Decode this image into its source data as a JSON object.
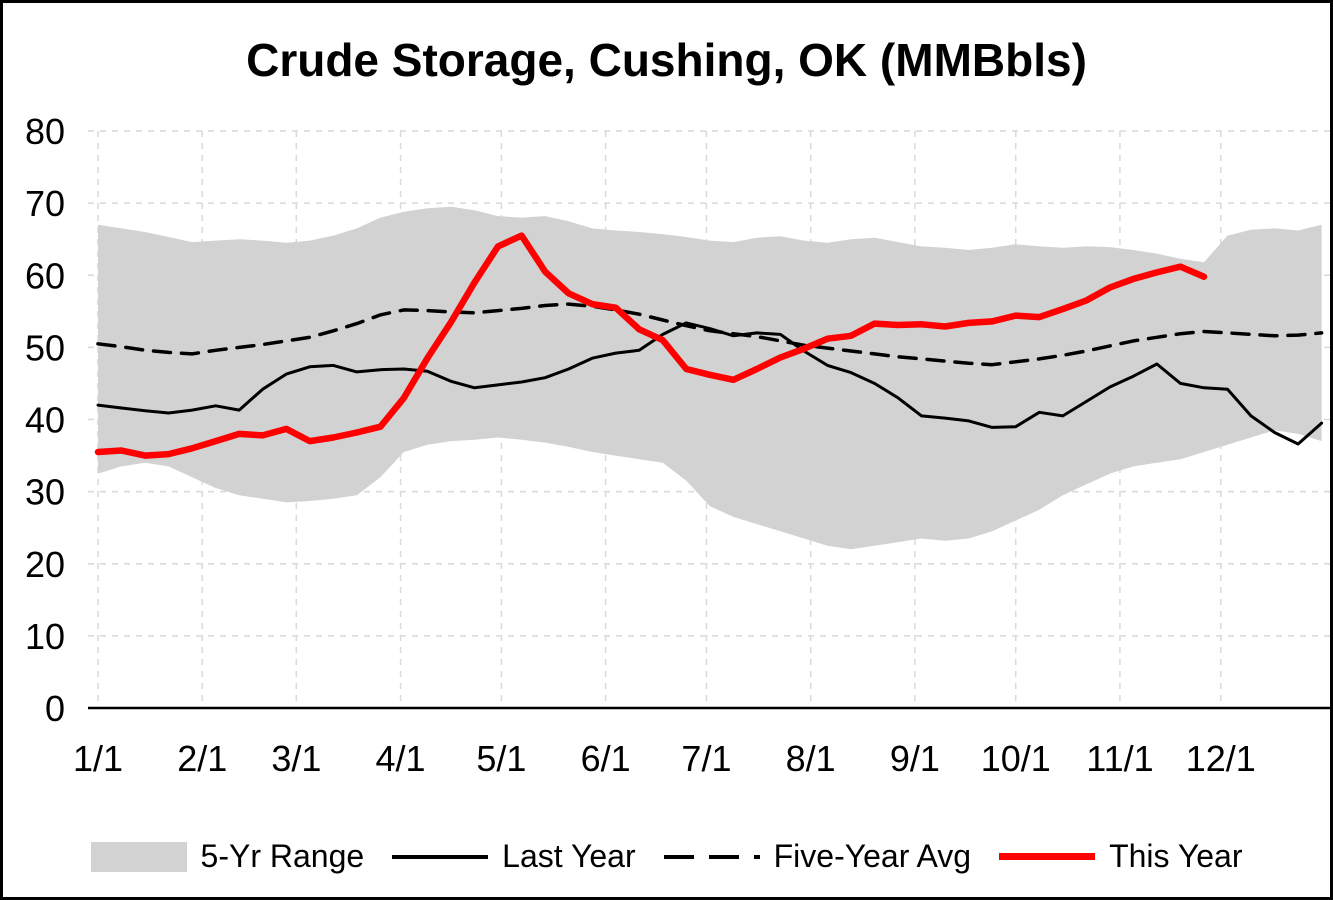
{
  "chart_data": {
    "type": "line",
    "title": "Crude Storage, Cushing, OK (MMBbls)",
    "xlabel": "",
    "ylabel": "",
    "ylim": [
      0,
      80
    ],
    "y_ticks": [
      0,
      10,
      20,
      30,
      40,
      50,
      60,
      70,
      80
    ],
    "x_domain_days": [
      0,
      364
    ],
    "x_tick_days": [
      0,
      31,
      59,
      90,
      120,
      151,
      181,
      212,
      243,
      273,
      304,
      334
    ],
    "x_tick_labels": [
      "1/1",
      "2/1",
      "3/1",
      "4/1",
      "5/1",
      "6/1",
      "7/1",
      "8/1",
      "9/1",
      "10/1",
      "11/1",
      "12/1"
    ],
    "step_days": 7,
    "grid": true,
    "legend_position": "bottom",
    "band": {
      "name": "5-Yr Range",
      "color": "#d2d2d2",
      "upper": [
        67.0,
        66.5,
        66.0,
        65.3,
        64.6,
        64.8,
        65.0,
        64.8,
        64.5,
        64.8,
        65.5,
        66.5,
        68.0,
        68.8,
        69.3,
        69.5,
        69.0,
        68.2,
        68.0,
        68.2,
        67.5,
        66.5,
        66.2,
        66.0,
        65.7,
        65.3,
        64.8,
        64.6,
        65.2,
        65.4,
        64.8,
        64.5,
        65.0,
        65.2,
        64.6,
        64.0,
        63.8,
        63.5,
        63.8,
        64.3,
        64.0,
        63.8,
        64.0,
        63.9,
        63.5,
        63.0,
        62.3,
        61.8,
        65.5,
        66.3,
        66.5,
        66.2,
        67.0
      ],
      "lower": [
        32.5,
        33.5,
        34.0,
        33.5,
        32.0,
        30.5,
        29.5,
        29.0,
        28.5,
        28.7,
        29.0,
        29.5,
        32.0,
        35.5,
        36.5,
        37.0,
        37.2,
        37.5,
        37.2,
        36.8,
        36.2,
        35.5,
        35.0,
        34.5,
        34.0,
        31.5,
        28.0,
        26.5,
        25.5,
        24.5,
        23.5,
        22.5,
        22.0,
        22.5,
        23.0,
        23.5,
        23.2,
        23.5,
        24.5,
        26.0,
        27.5,
        29.5,
        31.0,
        32.5,
        33.5,
        34.0,
        34.5,
        35.5,
        36.5,
        37.5,
        38.5,
        38.0,
        37.0
      ]
    },
    "series": [
      {
        "name": "Last Year",
        "color": "#000000",
        "style": "solid",
        "width": 3,
        "values": [
          42.0,
          41.6,
          41.2,
          40.9,
          41.3,
          41.9,
          41.3,
          44.2,
          46.3,
          47.3,
          47.5,
          46.6,
          46.9,
          47.0,
          46.7,
          45.3,
          44.4,
          44.8,
          45.2,
          45.8,
          47.0,
          48.5,
          49.2,
          49.6,
          51.8,
          53.4,
          52.6,
          51.6,
          52.0,
          51.8,
          49.5,
          47.5,
          46.5,
          45.0,
          43.0,
          40.5,
          40.2,
          39.8,
          38.9,
          39.0,
          41.0,
          40.5,
          42.5,
          44.5,
          46.0,
          47.7,
          45.0,
          44.4,
          44.2,
          40.5,
          38.2,
          36.6,
          39.5
        ]
      },
      {
        "name": "Five-Year Avg",
        "color": "#000000",
        "style": "dashed",
        "width": 3.5,
        "values": [
          50.5,
          50.1,
          49.6,
          49.3,
          49.1,
          49.6,
          50.0,
          50.4,
          50.9,
          51.4,
          52.3,
          53.3,
          54.5,
          55.2,
          55.1,
          54.9,
          54.8,
          55.1,
          55.4,
          55.8,
          56.0,
          55.7,
          55.2,
          54.6,
          53.8,
          53.0,
          52.3,
          51.9,
          51.5,
          50.9,
          50.3,
          49.9,
          49.5,
          49.1,
          48.7,
          48.4,
          48.1,
          47.8,
          47.6,
          48.0,
          48.4,
          48.9,
          49.5,
          50.2,
          50.9,
          51.4,
          51.9,
          52.2,
          52.0,
          51.8,
          51.6,
          51.7,
          52.0
        ]
      },
      {
        "name": "This Year",
        "color": "#fe0000",
        "style": "solid",
        "width": 6.5,
        "values": [
          35.5,
          35.7,
          35.0,
          35.2,
          36.0,
          37.0,
          38.0,
          37.8,
          38.7,
          37.0,
          37.5,
          38.2,
          39.0,
          43.0,
          48.5,
          53.5,
          59.0,
          64.0,
          65.5,
          60.5,
          57.5,
          56.0,
          55.5,
          52.5,
          51.0,
          47.0,
          46.2,
          45.5,
          47.0,
          48.6,
          49.8,
          51.2,
          51.6,
          53.3,
          53.1,
          53.2,
          52.9,
          53.4,
          53.6,
          54.4,
          54.2,
          55.3,
          56.5,
          58.3,
          59.5,
          60.4,
          61.2,
          59.8
        ]
      }
    ],
    "legend": [
      {
        "label": "5-Yr Range",
        "swatch": "band"
      },
      {
        "label": "Last Year",
        "swatch": "line-solid"
      },
      {
        "label": "Five-Year Avg",
        "swatch": "line-dashed"
      },
      {
        "label": "This Year",
        "swatch": "line-red"
      }
    ],
    "colors": {
      "band": "#d2d2d2",
      "gridline": "#d9d9d9",
      "this_year": "#fe0000",
      "last_year": "#000000",
      "five_year_avg": "#000000",
      "axis": "#000000"
    }
  }
}
